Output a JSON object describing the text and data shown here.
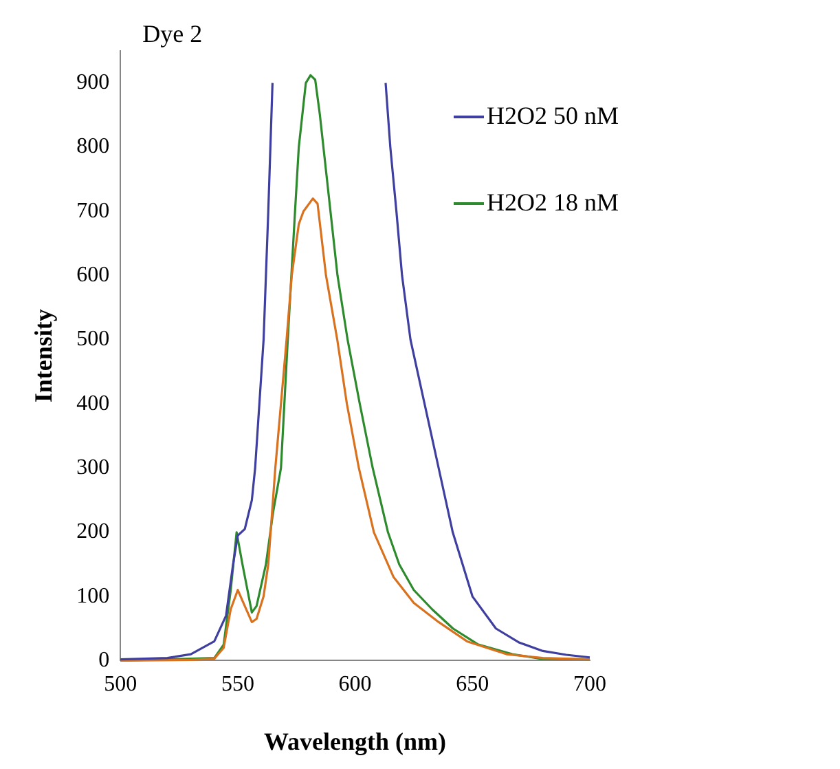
{
  "chart_data": {
    "type": "line",
    "title": "Dye 2",
    "xlabel": "Wavelength (nm)",
    "ylabel": "Intensity",
    "xlim": [
      500,
      700
    ],
    "xticks": [
      500,
      550,
      600,
      650,
      700
    ],
    "ylim": [
      0,
      950
    ],
    "yticks": [
      0,
      100,
      200,
      300,
      400,
      500,
      600,
      700,
      800,
      900
    ],
    "grid": false,
    "legend": "right",
    "marker": "none",
    "line_style": "solid",
    "series": [
      {
        "name": "H2O2 50 nM",
        "color": "#3f3f9f",
        "x": [
          500,
          520,
          530,
          540,
          545,
          548,
          550,
          553,
          556,
          557.4,
          561,
          563,
          564.8,
          590,
          613,
          615,
          617.6,
          620,
          623.6,
          629.6,
          635.6,
          641.6,
          650,
          660,
          670,
          680,
          690,
          700
        ],
        "values": [
          2,
          4,
          10,
          30,
          70,
          150,
          195,
          205,
          250,
          300,
          500,
          700,
          900,
          null,
          900,
          800,
          700,
          600,
          500,
          400,
          300,
          200,
          100,
          50,
          28,
          15,
          9,
          5
        ]
      },
      {
        "color": "#d9721f",
        "x": [
          500,
          530,
          540,
          544,
          547,
          550,
          553,
          556,
          558,
          561,
          563,
          566,
          570.8,
          573,
          576,
          578,
          582,
          584,
          587.6,
          592.4,
          596.5,
          601.6,
          608,
          616.4,
          625,
          635.6,
          647.7,
          664.5,
          680,
          700
        ],
        "values": [
          0,
          1,
          3,
          20,
          80,
          110,
          85,
          60,
          65,
          100,
          150,
          300,
          500,
          600,
          680,
          700,
          720,
          712,
          600,
          500,
          400,
          300,
          200,
          130,
          90,
          60,
          30,
          10,
          4,
          2
        ]
      },
      {
        "name": "H2O2 18 nM",
        "color": "#2d8a2d",
        "x": [
          500,
          540,
          544,
          547,
          549.5,
          552,
          556,
          558,
          562,
          565,
          568.4,
          571.3,
          574.4,
          576,
          579,
          581,
          583,
          585,
          588,
          592.5,
          596.8,
          602,
          607.5,
          614,
          618.8,
          625,
          632.8,
          641.7,
          652.5,
          667,
          679,
          700
        ],
        "values": [
          0,
          4,
          25,
          110,
          200,
          150,
          75,
          85,
          150,
          230,
          300,
          500,
          700,
          800,
          900,
          912,
          905,
          850,
          750,
          600,
          500,
          400,
          300,
          200,
          150,
          110,
          80,
          50,
          25,
          10,
          3,
          2
        ]
      }
    ]
  }
}
